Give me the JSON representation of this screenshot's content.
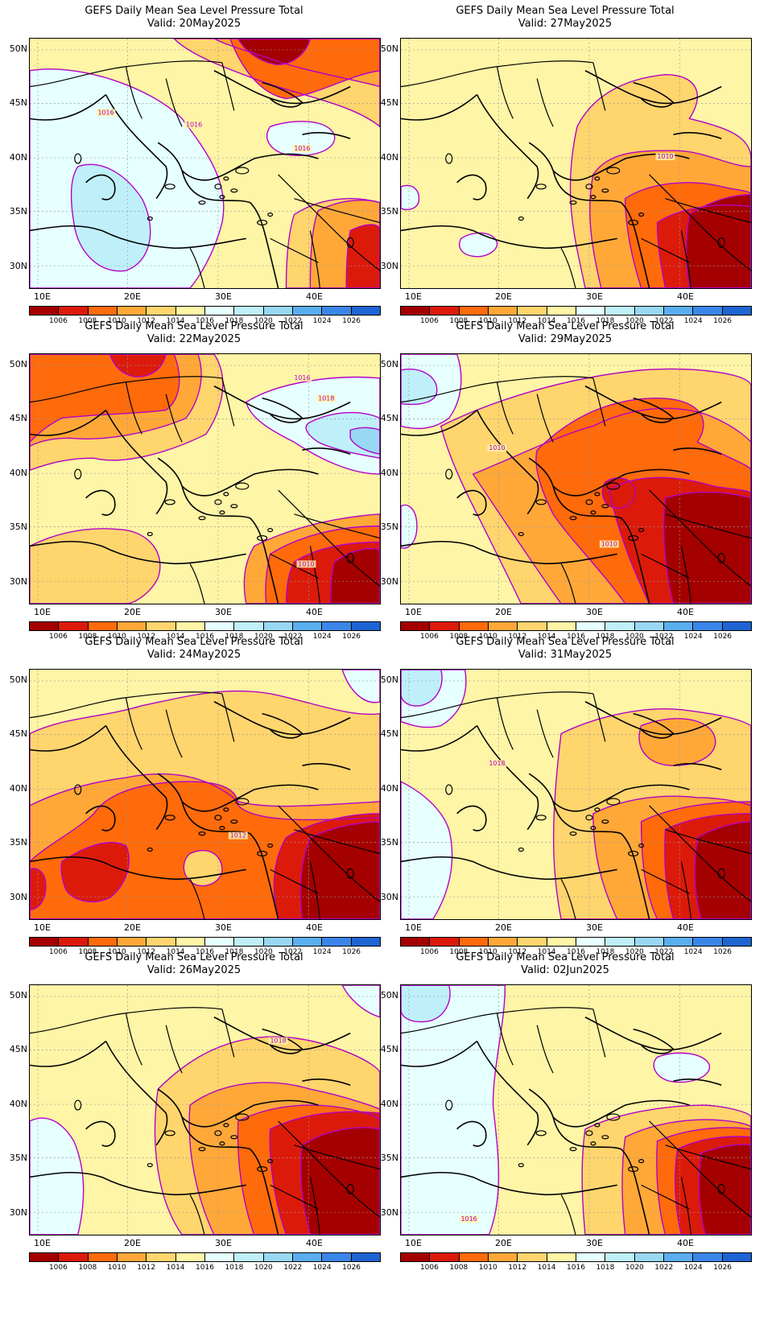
{
  "panels": [
    {
      "title": "GEFS Daily Mean Sea Level Pressure Total",
      "valid": "Valid: 20May2025"
    },
    {
      "title": "GEFS Daily Mean Sea Level Pressure Total",
      "valid": "Valid: 27May2025"
    },
    {
      "title": "GEFS Daily Mean Sea Level Pressure Total",
      "valid": "Valid: 22May2025"
    },
    {
      "title": "GEFS Daily Mean Sea Level Pressure Total",
      "valid": "Valid: 29May2025"
    },
    {
      "title": "GEFS Daily Mean Sea Level Pressure Total",
      "valid": "Valid: 24May2025"
    },
    {
      "title": "GEFS Daily Mean Sea Level Pressure Total",
      "valid": "Valid: 31May2025"
    },
    {
      "title": "GEFS Daily Mean Sea Level Pressure Total",
      "valid": "Valid: 26May2025"
    },
    {
      "title": "GEFS Daily Mean Sea Level Pressure Total",
      "valid": "Valid: 02Jun2025"
    }
  ],
  "axes": {
    "lat_labels": [
      "50N",
      "45N",
      "40N",
      "35N",
      "30N"
    ],
    "lon_labels": [
      "10E",
      "20E",
      "30E",
      "40E"
    ]
  },
  "colorbar": {
    "labels": [
      "1006",
      "1008",
      "1010",
      "1012",
      "1014",
      "1016",
      "1018",
      "1020",
      "1022",
      "1024",
      "1026"
    ],
    "colors": [
      "#a50000",
      "#dc1a0a",
      "#ff6a0a",
      "#ffa838",
      "#ffd56e",
      "#fff5a6",
      "#e6ffff",
      "#bff0fa",
      "#98d8f5",
      "#5aaef0",
      "#3a86e8",
      "#1e64d2"
    ]
  },
  "map_colors": {
    "contour_line": "#b300c8",
    "border_line": "#000000",
    "grid_line": "#9a9a9a"
  },
  "contour_labels": [
    [
      "1016",
      "1016",
      "1016"
    ],
    [
      "1010"
    ],
    [
      "1016",
      "1018",
      "1010"
    ],
    [
      "1010",
      "1010"
    ],
    [
      "1012"
    ],
    [
      "1018"
    ],
    [
      "1018"
    ],
    [
      "1016"
    ]
  ]
}
